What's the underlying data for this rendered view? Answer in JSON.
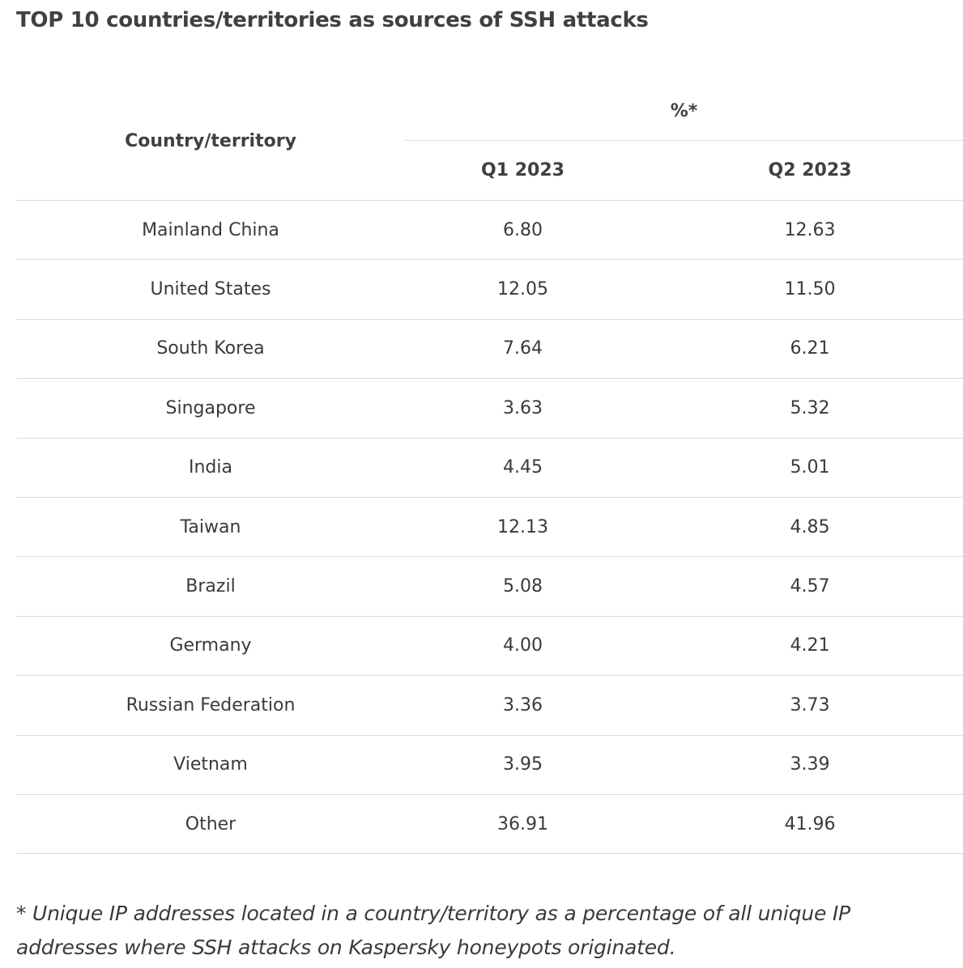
{
  "title": "TOP 10 countries/territories as sources of SSH attacks",
  "table": {
    "header_country": "Country/territory",
    "header_percent": "%*",
    "header_q1": "Q1 2023",
    "header_q2": "Q2 2023",
    "rows": [
      {
        "country": "Mainland China",
        "q1": "6.80",
        "q2": "12.63"
      },
      {
        "country": "United States",
        "q1": "12.05",
        "q2": "11.50"
      },
      {
        "country": "South Korea",
        "q1": "7.64",
        "q2": "6.21"
      },
      {
        "country": "Singapore",
        "q1": "3.63",
        "q2": "5.32"
      },
      {
        "country": "India",
        "q1": "4.45",
        "q2": "5.01"
      },
      {
        "country": "Taiwan",
        "q1": "12.13",
        "q2": "4.85"
      },
      {
        "country": "Brazil",
        "q1": "5.08",
        "q2": "4.57"
      },
      {
        "country": "Germany",
        "q1": "4.00",
        "q2": "4.21"
      },
      {
        "country": "Russian Federation",
        "q1": "3.36",
        "q2": "3.73"
      },
      {
        "country": "Vietnam",
        "q1": "3.95",
        "q2": "3.39"
      },
      {
        "country": "Other",
        "q1": "36.91",
        "q2": "41.96"
      }
    ]
  },
  "footnote": "* Unique IP addresses located in a country/territory as a percentage of all unique IP addresses where SSH attacks on Kaspersky honeypots originated."
}
